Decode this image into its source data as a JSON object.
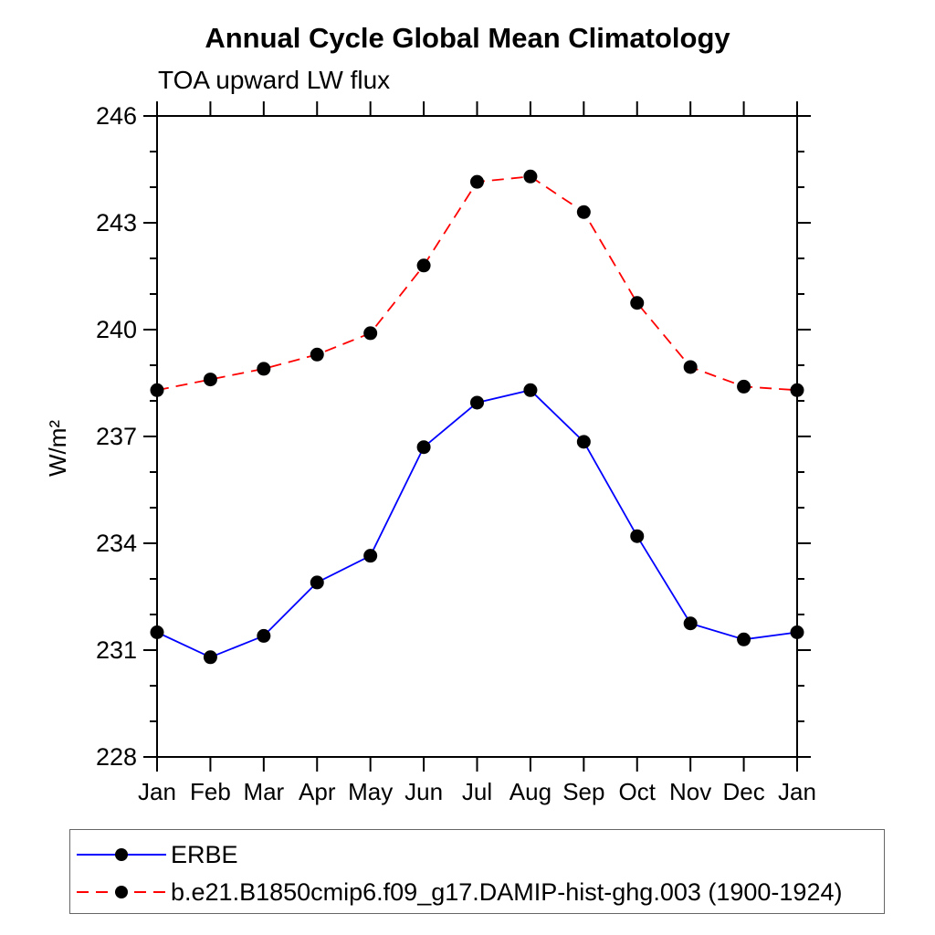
{
  "chart_data": {
    "type": "line",
    "title": "Annual Cycle Global Mean Climatology",
    "subtitle": "TOA upward LW flux",
    "ylabel": "W/m²",
    "categories": [
      "Jan",
      "Feb",
      "Mar",
      "Apr",
      "May",
      "Jun",
      "Jul",
      "Aug",
      "Sep",
      "Oct",
      "Nov",
      "Dec",
      "Jan"
    ],
    "ylim": [
      228,
      246
    ],
    "yticks": [
      228,
      231,
      234,
      237,
      240,
      243,
      246
    ],
    "ytick_minor_step": 1,
    "grid": "off",
    "legend_position": "bottom-left-box",
    "frame_color": "#000000",
    "marker_color": "#000000",
    "series": [
      {
        "name": "ERBE",
        "color": "#0000ff",
        "style": "solid",
        "marker": "circle",
        "values": [
          231.5,
          230.8,
          231.4,
          232.9,
          233.65,
          236.7,
          237.95,
          238.3,
          236.85,
          234.2,
          231.75,
          231.3,
          231.5
        ]
      },
      {
        "name": "b.e21.B1850cmip6.f09_g17.DAMIP-hist-ghg.003 (1900-1924)",
        "color": "#ff0000",
        "style": "dashed",
        "marker": "circle",
        "values": [
          238.3,
          238.6,
          238.9,
          239.3,
          239.9,
          241.8,
          244.15,
          244.3,
          243.3,
          240.75,
          238.95,
          238.4,
          238.3
        ]
      }
    ]
  }
}
